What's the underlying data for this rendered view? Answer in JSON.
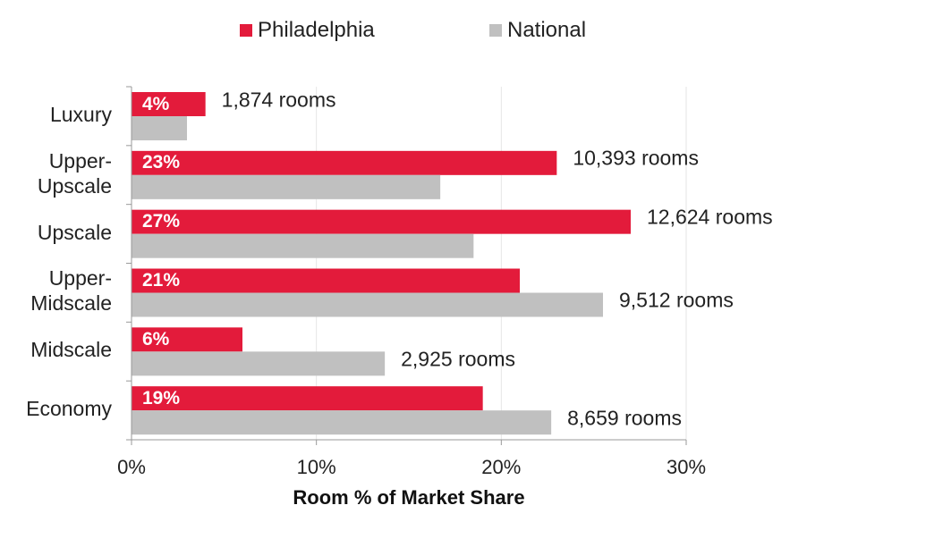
{
  "legend": {
    "philadelphia": "Philadelphia",
    "national": "National"
  },
  "colors": {
    "philadelphia": "#e31b3b",
    "national": "#c0c0c0",
    "grid": "#e6e6e6",
    "axis": "#999999"
  },
  "chart_data": {
    "type": "bar",
    "orientation": "horizontal",
    "categories": [
      "Luxury",
      "Upper-\nUpscale",
      "Upscale",
      "Upper-\nMidscale",
      "Midscale",
      "Economy"
    ],
    "series": [
      {
        "name": "Philadelphia",
        "values": [
          4,
          23,
          27,
          21,
          6,
          19
        ],
        "data_labels": [
          "4%",
          "23%",
          "27%",
          "21%",
          "6%",
          "19%"
        ]
      },
      {
        "name": "National",
        "values": [
          3,
          16.7,
          18.5,
          25.5,
          13.7,
          22.7
        ]
      }
    ],
    "rooms_labels": [
      "1,874 rooms",
      "10,393 rooms",
      "12,624 rooms",
      "9,512 rooms",
      "2,925 rooms",
      "8,659 rooms"
    ],
    "xlim": [
      0,
      30
    ],
    "xticks": [
      "0%",
      "10%",
      "20%",
      "30%"
    ],
    "xlabel": "Room % of Market Share",
    "ylabel": "",
    "grid": true,
    "legend_position": "top"
  }
}
